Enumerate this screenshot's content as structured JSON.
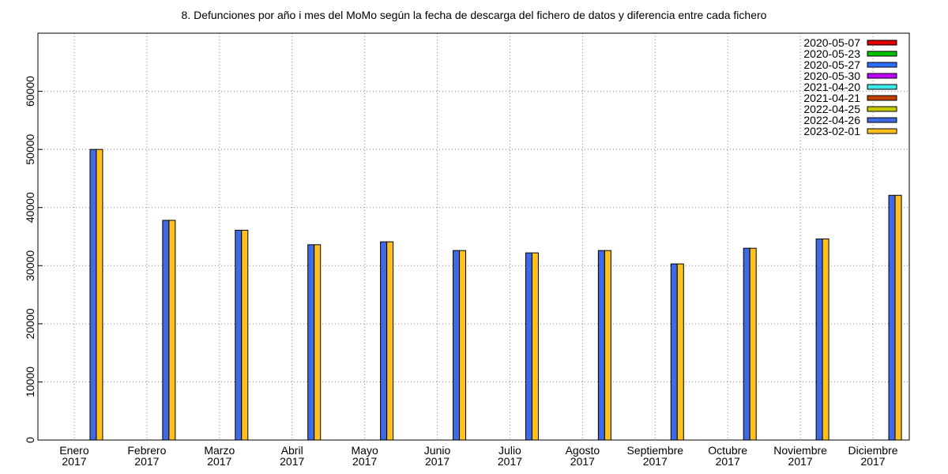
{
  "chart_data": {
    "type": "bar",
    "title": "8. Defunciones por año i mes del MoMo según la fecha de descarga del fichero de datos y diferencia entre cada fichero",
    "categories": [
      "Enero\n2017",
      "Febrero\n2017",
      "Marzo\n2017",
      "Abril\n2017",
      "Mayo\n2017",
      "Junio\n2017",
      "Julio\n2017",
      "Agosto\n2017",
      "Septiembre\n2017",
      "Octubre\n2017",
      "Noviembre\n2017",
      "Diciembre\n2017"
    ],
    "series": [
      {
        "name": "2020-05-07",
        "color": "#e00000",
        "values": [
          null,
          null,
          null,
          null,
          null,
          null,
          null,
          null,
          null,
          null,
          null,
          null
        ]
      },
      {
        "name": "2020-05-23",
        "color": "#00c000",
        "values": [
          null,
          null,
          null,
          null,
          null,
          null,
          null,
          null,
          null,
          null,
          null,
          null
        ]
      },
      {
        "name": "2020-05-27",
        "color": "#2a6fff",
        "values": [
          null,
          null,
          null,
          null,
          null,
          null,
          null,
          null,
          null,
          null,
          null,
          null
        ]
      },
      {
        "name": "2020-05-30",
        "color": "#c000ff",
        "values": [
          null,
          null,
          null,
          null,
          null,
          null,
          null,
          null,
          null,
          null,
          null,
          null
        ]
      },
      {
        "name": "2021-04-20",
        "color": "#40e8e8",
        "values": [
          null,
          null,
          null,
          null,
          null,
          null,
          null,
          null,
          null,
          null,
          null,
          null
        ]
      },
      {
        "name": "2021-04-21",
        "color": "#c04000",
        "values": [
          null,
          null,
          null,
          null,
          null,
          null,
          null,
          null,
          null,
          null,
          null,
          null
        ]
      },
      {
        "name": "2022-04-25",
        "color": "#c8c800",
        "values": [
          null,
          null,
          null,
          null,
          null,
          null,
          null,
          null,
          null,
          null,
          null,
          null
        ]
      },
      {
        "name": "2022-04-26",
        "color": "#4169e1",
        "values": [
          50000,
          37800,
          36100,
          33600,
          34100,
          32600,
          32200,
          32600,
          30300,
          33000,
          34600,
          42100
        ]
      },
      {
        "name": "2023-02-01",
        "color": "#ffc020",
        "values": [
          50000,
          37800,
          36100,
          33600,
          34100,
          32600,
          32200,
          32600,
          30300,
          33000,
          34600,
          42100
        ]
      }
    ],
    "ylim": [
      0,
      70000
    ],
    "yticks": [
      0,
      10000,
      20000,
      30000,
      40000,
      50000,
      60000
    ],
    "grid": true,
    "legend": "top-right"
  }
}
